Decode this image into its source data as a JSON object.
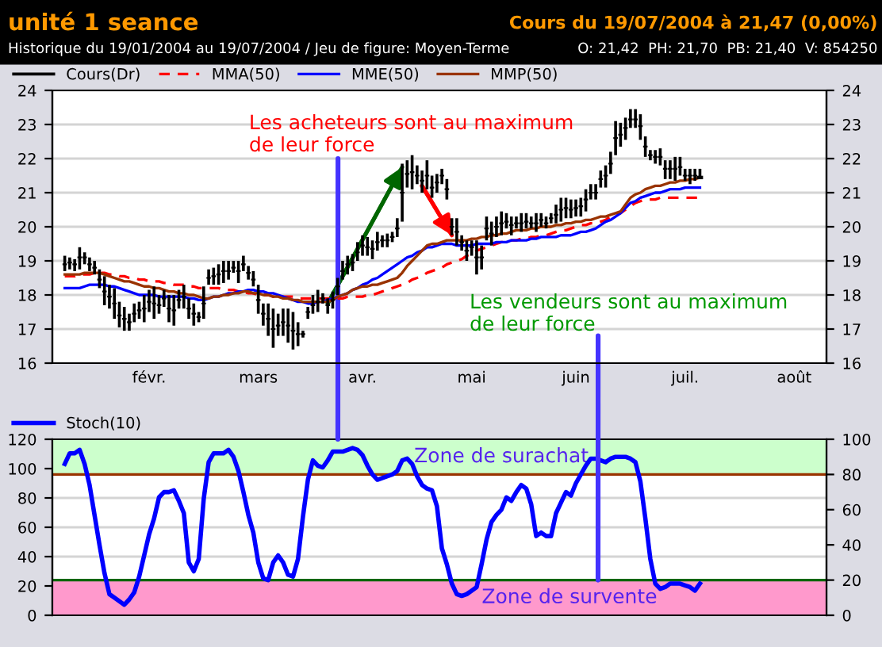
{
  "chart_data": [
    {
      "type": "candlestick",
      "title": "unité 1 seance",
      "subtitle": "Historique du 19/01/2004 au 19/07/2004 / Jeu de figure: Moyen-Terme",
      "categories": [
        null,
        null,
        null,
        null,
        null,
        null,
        null,
        null,
        null,
        null,
        null,
        null,
        null,
        null,
        null,
        null,
        null,
        null,
        null,
        "févr.",
        null,
        null,
        null,
        null,
        null,
        null,
        null,
        null,
        null,
        null,
        null,
        null,
        null,
        null,
        null,
        null,
        null,
        null,
        null,
        null,
        null,
        "mars",
        null,
        null,
        null,
        null,
        null,
        null,
        null,
        null,
        null,
        null,
        null,
        null,
        null,
        null,
        null,
        null,
        null,
        null,
        null,
        null,
        "avr.",
        null,
        null,
        null,
        null,
        null,
        null,
        null,
        null,
        null,
        null,
        null,
        null,
        null,
        null,
        null,
        null,
        null,
        null,
        null,
        null,
        null,
        "mai",
        null,
        null,
        null,
        null,
        null,
        null,
        null,
        null,
        null,
        null,
        null,
        null,
        null,
        null,
        null,
        null,
        null,
        null,
        null,
        null,
        "juin",
        null,
        null,
        null,
        null,
        null,
        null,
        null,
        null,
        null,
        null,
        null,
        null,
        null,
        null,
        null,
        null,
        null,
        null,
        null,
        null,
        null,
        "juil.",
        null,
        null,
        null,
        null,
        null,
        null,
        null,
        null,
        null,
        null,
        null,
        null,
        null,
        null,
        null,
        null,
        null,
        null,
        null,
        null,
        null,
        "août",
        null,
        null,
        null,
        null,
        null,
        null
      ],
      "series": [
        {
          "name": "Cours(Dr)",
          "color": "#000000",
          "ohlc": [
            null,
            null,
            [
              18.9,
              19.15,
              18.7,
              18.9
            ],
            [
              18.95,
              19.1,
              18.75,
              18.95
            ],
            [
              18.9,
              19.05,
              18.7,
              18.9
            ],
            [
              19.1,
              19.4,
              18.75,
              19.1
            ],
            [
              19.1,
              19.25,
              18.9,
              19.1
            ],
            [
              18.9,
              19.1,
              18.7,
              18.9
            ],
            [
              18.8,
              19.0,
              18.6,
              18.8
            ],
            [
              18.45,
              18.75,
              18.2,
              18.45
            ],
            [
              18.1,
              18.55,
              17.7,
              18.1
            ],
            [
              17.95,
              18.3,
              17.6,
              17.95
            ],
            [
              17.75,
              18.2,
              17.3,
              17.75
            ],
            [
              17.4,
              17.8,
              17.05,
              17.4
            ],
            [
              17.3,
              17.65,
              16.95,
              17.3
            ],
            [
              17.2,
              17.45,
              16.95,
              17.2
            ],
            [
              17.45,
              17.75,
              17.2,
              17.45
            ],
            [
              17.55,
              17.8,
              17.3,
              17.55
            ],
            [
              17.6,
              18.0,
              17.2,
              17.6
            ],
            [
              17.8,
              18.15,
              17.5,
              17.8
            ],
            [
              17.75,
              18.25,
              17.3,
              17.75
            ],
            [
              17.7,
              18.0,
              17.45,
              17.7
            ],
            [
              17.9,
              18.15,
              17.65,
              17.9
            ],
            [
              17.6,
              18.0,
              17.2,
              17.6
            ],
            [
              17.55,
              18.0,
              17.1,
              17.55
            ],
            [
              17.85,
              18.15,
              17.6,
              17.85
            ],
            [
              17.95,
              18.3,
              17.6,
              17.95
            ],
            [
              17.6,
              17.9,
              17.3,
              17.6
            ],
            [
              17.45,
              17.75,
              17.1,
              17.45
            ],
            [
              17.35,
              17.5,
              17.2,
              17.35
            ],
            [
              17.75,
              18.25,
              17.3,
              17.75
            ],
            [
              18.5,
              18.75,
              18.3,
              18.5
            ],
            [
              18.55,
              18.8,
              18.3,
              18.55
            ],
            [
              18.6,
              18.9,
              18.3,
              18.6
            ],
            [
              18.7,
              19.0,
              18.35,
              18.7
            ],
            [
              18.7,
              19.0,
              18.45,
              18.7
            ],
            [
              18.8,
              19.0,
              18.65,
              18.8
            ],
            [
              18.7,
              19.0,
              18.35,
              18.7
            ],
            [
              18.9,
              19.15,
              18.7,
              18.9
            ],
            [
              18.65,
              18.85,
              18.45,
              18.65
            ],
            [
              18.45,
              18.7,
              18.25,
              18.45
            ],
            [
              17.85,
              18.3,
              17.45,
              17.85
            ],
            [
              17.45,
              17.75,
              17.1,
              17.45
            ],
            [
              17.3,
              17.75,
              16.8,
              17.3
            ],
            [
              17.0,
              17.6,
              16.45,
              17.0
            ],
            [
              17.1,
              17.45,
              16.8,
              17.1
            ],
            [
              17.2,
              17.6,
              16.8,
              17.2
            ],
            [
              17.1,
              17.6,
              16.6,
              17.1
            ],
            [
              16.95,
              17.5,
              16.4,
              16.95
            ],
            [
              16.85,
              17.2,
              16.5,
              16.85
            ],
            [
              16.85,
              16.95,
              16.75,
              16.85
            ],
            [
              17.5,
              17.65,
              17.3,
              17.5
            ],
            [
              17.7,
              18.0,
              17.45,
              17.7
            ],
            [
              17.8,
              18.15,
              17.5,
              17.8
            ],
            [
              17.9,
              18.05,
              17.75,
              17.9
            ],
            [
              17.7,
              17.9,
              17.45,
              17.7
            ],
            [
              17.85,
              18.1,
              17.6,
              17.85
            ],
            [
              18.25,
              18.5,
              18.0,
              18.25
            ],
            [
              18.7,
              19.0,
              18.45,
              18.7
            ],
            [
              18.9,
              19.15,
              18.6,
              18.9
            ],
            [
              18.95,
              19.2,
              18.7,
              18.95
            ],
            [
              19.25,
              19.55,
              19.0,
              19.25
            ],
            [
              19.45,
              19.75,
              19.15,
              19.45
            ],
            [
              19.4,
              19.7,
              19.15,
              19.4
            ],
            [
              19.35,
              19.6,
              19.05,
              19.35
            ],
            [
              19.55,
              19.85,
              19.3,
              19.55
            ],
            [
              19.6,
              19.75,
              19.4,
              19.6
            ],
            [
              19.6,
              19.8,
              19.4,
              19.6
            ],
            [
              19.7,
              19.85,
              19.55,
              19.7
            ],
            [
              19.95,
              20.25,
              19.7,
              19.95
            ],
            [
              21.0,
              21.85,
              20.15,
              21.0
            ],
            [
              21.55,
              21.95,
              21.15,
              21.55
            ],
            [
              21.6,
              22.1,
              21.1,
              21.6
            ],
            [
              21.5,
              21.8,
              21.25,
              21.5
            ],
            [
              21.35,
              21.65,
              21.0,
              21.35
            ],
            [
              21.5,
              21.95,
              21.1,
              21.5
            ],
            [
              21.15,
              21.5,
              20.85,
              21.15
            ],
            [
              21.3,
              21.55,
              21.0,
              21.3
            ],
            [
              21.5,
              21.7,
              21.25,
              21.5
            ],
            [
              21.1,
              21.4,
              20.8,
              21.1
            ],
            [
              20.0,
              20.25,
              19.75,
              20.0
            ],
            [
              19.85,
              20.25,
              19.45,
              19.85
            ],
            [
              19.55,
              19.75,
              19.3,
              19.55
            ],
            [
              19.3,
              19.6,
              19.0,
              19.3
            ],
            [
              19.4,
              19.6,
              19.15,
              19.4
            ],
            [
              19.1,
              19.6,
              18.6,
              19.1
            ],
            [
              19.1,
              19.45,
              18.75,
              19.1
            ],
            [
              19.95,
              20.3,
              19.6,
              19.95
            ],
            [
              19.8,
              20.15,
              19.45,
              19.8
            ],
            [
              20.0,
              20.3,
              19.7,
              20.0
            ],
            [
              20.1,
              20.45,
              19.75,
              20.1
            ],
            [
              20.15,
              20.4,
              19.95,
              20.15
            ],
            [
              20.05,
              20.3,
              19.75,
              20.05
            ],
            [
              20.1,
              20.3,
              19.95,
              20.1
            ],
            [
              20.1,
              20.4,
              19.85,
              20.1
            ],
            [
              20.15,
              20.4,
              19.95,
              20.15
            ],
            [
              20.1,
              20.3,
              19.95,
              20.1
            ],
            [
              20.1,
              20.4,
              19.85,
              20.1
            ],
            [
              20.2,
              20.4,
              20.0,
              20.2
            ],
            [
              20.1,
              20.3,
              19.95,
              20.1
            ],
            [
              20.25,
              20.4,
              20.1,
              20.25
            ],
            [
              20.35,
              20.65,
              20.1,
              20.35
            ],
            [
              20.5,
              20.85,
              20.15,
              20.5
            ],
            [
              20.55,
              20.85,
              20.25,
              20.55
            ],
            [
              20.5,
              20.8,
              20.25,
              20.5
            ],
            [
              20.55,
              20.8,
              20.3,
              20.55
            ],
            [
              20.6,
              20.85,
              20.3,
              20.6
            ],
            [
              20.8,
              21.1,
              20.45,
              20.8
            ],
            [
              21.0,
              21.25,
              20.8,
              21.0
            ],
            [
              21.0,
              21.25,
              20.8,
              21.0
            ],
            [
              21.4,
              21.65,
              21.15,
              21.4
            ],
            [
              21.5,
              21.8,
              21.15,
              21.5
            ],
            [
              21.85,
              22.2,
              21.55,
              21.85
            ],
            [
              22.6,
              23.1,
              22.1,
              22.6
            ],
            [
              22.7,
              23.05,
              22.35,
              22.7
            ],
            [
              22.9,
              23.2,
              22.55,
              22.9
            ],
            [
              23.15,
              23.45,
              22.9,
              23.15
            ],
            [
              23.15,
              23.45,
              22.9,
              23.15
            ],
            [
              22.95,
              23.3,
              22.55,
              22.95
            ],
            [
              22.35,
              22.65,
              22.05,
              22.35
            ],
            [
              22.1,
              22.25,
              21.95,
              22.1
            ],
            [
              22.05,
              22.25,
              21.85,
              22.05
            ],
            [
              22.05,
              22.3,
              21.8,
              22.05
            ],
            [
              21.7,
              21.95,
              21.4,
              21.7
            ],
            [
              21.7,
              21.95,
              21.4,
              21.7
            ],
            [
              21.7,
              22.05,
              21.35,
              21.7
            ],
            [
              21.75,
              22.05,
              21.5,
              21.75
            ],
            [
              21.5,
              21.7,
              21.35,
              21.5
            ],
            [
              21.5,
              21.7,
              21.25,
              21.5
            ],
            [
              21.5,
              21.7,
              21.35,
              21.5
            ],
            [
              21.42,
              21.7,
              21.4,
              21.47
            ],
            null,
            null,
            null,
            null,
            null,
            null,
            null,
            null,
            null,
            null,
            null,
            null,
            null,
            null,
            null,
            null,
            null,
            null,
            null,
            null,
            null,
            null,
            null,
            null,
            null
          ]
        },
        {
          "type": "line",
          "name": "MMA(50)",
          "color": "#ff0000",
          "line_style": "dashed",
          "values": [
            null,
            null,
            18.55,
            18.55,
            18.55,
            18.6,
            18.6,
            18.6,
            18.65,
            18.65,
            18.65,
            18.6,
            18.6,
            18.55,
            18.55,
            18.5,
            18.5,
            18.45,
            18.45,
            18.4,
            18.4,
            18.4,
            18.35,
            18.35,
            18.3,
            18.3,
            18.3,
            18.25,
            18.25,
            18.2,
            18.2,
            18.2,
            18.2,
            18.2,
            18.15,
            18.15,
            18.15,
            18.1,
            18.1,
            18.05,
            18.05,
            18.0,
            18.0,
            18.0,
            17.95,
            17.95,
            17.95,
            17.95,
            17.95,
            17.9,
            17.9,
            17.9,
            17.9,
            17.9,
            17.9,
            17.9,
            17.9,
            17.9,
            17.9,
            17.95,
            17.95,
            17.95,
            17.95,
            18.0,
            18.0,
            18.05,
            18.1,
            18.15,
            18.2,
            18.25,
            18.3,
            18.35,
            18.45,
            18.5,
            18.55,
            18.65,
            18.7,
            18.75,
            18.8,
            18.9,
            18.95,
            19.0,
            19.05,
            19.15,
            19.2,
            19.3,
            19.35,
            19.4,
            19.45,
            19.5,
            19.55,
            19.55,
            19.6,
            19.6,
            19.65,
            19.65,
            19.7,
            19.7,
            19.75,
            19.75,
            19.8,
            19.85,
            19.9,
            19.9,
            19.95,
            20.0,
            20.05,
            20.05,
            20.1,
            20.1,
            20.15,
            20.2,
            20.3,
            20.35,
            20.4,
            20.5,
            20.6,
            20.7,
            20.75,
            20.8,
            20.8,
            20.8,
            20.85,
            20.85,
            20.85,
            20.85,
            20.85,
            20.85,
            20.85,
            20.85,
            20.85,
            null,
            null,
            null,
            null,
            null,
            null,
            null,
            null,
            null,
            null,
            null,
            null,
            null,
            null,
            null,
            null,
            null,
            null,
            null,
            null,
            null,
            null,
            null,
            null,
            null
          ]
        },
        {
          "type": "line",
          "name": "MME(50)",
          "color": "#0000ff",
          "line_style": "solid",
          "values": [
            null,
            null,
            18.2,
            18.2,
            18.2,
            18.2,
            18.25,
            18.3,
            18.3,
            18.3,
            18.3,
            18.25,
            18.25,
            18.2,
            18.15,
            18.1,
            18.05,
            18.0,
            18.0,
            18.0,
            18.0,
            17.95,
            17.95,
            17.95,
            17.95,
            17.95,
            17.95,
            17.9,
            17.9,
            17.85,
            17.85,
            17.9,
            17.95,
            17.95,
            18.0,
            18.05,
            18.05,
            18.1,
            18.1,
            18.15,
            18.15,
            18.1,
            18.1,
            18.05,
            18.05,
            18.0,
            17.95,
            17.9,
            17.85,
            17.8,
            17.8,
            17.75,
            17.75,
            17.8,
            17.8,
            17.85,
            17.9,
            17.95,
            18.0,
            18.05,
            18.15,
            18.2,
            18.3,
            18.35,
            18.45,
            18.5,
            18.6,
            18.7,
            18.8,
            18.9,
            19.0,
            19.1,
            19.15,
            19.25,
            19.3,
            19.4,
            19.4,
            19.45,
            19.5,
            19.5,
            19.5,
            19.45,
            19.45,
            19.45,
            19.45,
            19.5,
            19.5,
            19.5,
            19.5,
            19.55,
            19.55,
            19.55,
            19.6,
            19.6,
            19.6,
            19.6,
            19.65,
            19.65,
            19.7,
            19.7,
            19.7,
            19.7,
            19.75,
            19.75,
            19.75,
            19.8,
            19.85,
            19.85,
            19.9,
            19.95,
            20.05,
            20.15,
            20.2,
            20.3,
            20.4,
            20.55,
            20.7,
            20.75,
            20.85,
            20.9,
            20.95,
            21.0,
            21.0,
            21.05,
            21.1,
            21.1,
            21.1,
            21.15,
            21.15,
            21.15,
            21.15,
            null,
            null,
            null,
            null,
            null,
            null,
            null,
            null,
            null,
            null,
            null,
            null,
            null,
            null,
            null,
            null,
            null,
            null,
            null,
            null,
            null,
            null,
            null,
            null,
            null
          ]
        },
        {
          "type": "line",
          "name": "MMP(50)",
          "color": "#993300",
          "line_style": "solid",
          "values": [
            null,
            null,
            18.6,
            18.6,
            18.6,
            18.6,
            18.65,
            18.65,
            18.65,
            18.65,
            18.6,
            18.55,
            18.5,
            18.45,
            18.4,
            18.4,
            18.35,
            18.3,
            18.25,
            18.25,
            18.2,
            18.2,
            18.15,
            18.1,
            18.1,
            18.05,
            18.05,
            18.0,
            18.0,
            17.95,
            17.9,
            17.9,
            17.95,
            17.95,
            18.0,
            18.0,
            18.05,
            18.05,
            18.1,
            18.1,
            18.05,
            18.05,
            18.0,
            18.0,
            17.95,
            17.95,
            17.9,
            17.9,
            17.85,
            17.85,
            17.8,
            17.8,
            17.8,
            17.8,
            17.8,
            17.8,
            17.85,
            17.95,
            18.0,
            18.05,
            18.15,
            18.2,
            18.25,
            18.25,
            18.3,
            18.3,
            18.35,
            18.4,
            18.45,
            18.5,
            18.65,
            18.85,
            19.0,
            19.15,
            19.3,
            19.45,
            19.5,
            19.5,
            19.55,
            19.6,
            19.6,
            19.6,
            19.6,
            19.6,
            19.65,
            19.65,
            19.7,
            19.7,
            19.75,
            19.75,
            19.8,
            19.8,
            19.85,
            19.9,
            19.9,
            19.9,
            19.95,
            19.95,
            20.0,
            20.0,
            20.0,
            20.05,
            20.05,
            20.1,
            20.1,
            20.15,
            20.15,
            20.2,
            20.2,
            20.25,
            20.3,
            20.3,
            20.35,
            20.4,
            20.45,
            20.65,
            20.85,
            20.95,
            21.0,
            21.1,
            21.15,
            21.2,
            21.2,
            21.25,
            21.3,
            21.3,
            21.35,
            21.35,
            21.4,
            21.4,
            21.45,
            null,
            null,
            null,
            null,
            null,
            null,
            null,
            null,
            null,
            null,
            null,
            null,
            null,
            null,
            null,
            null,
            null,
            null,
            null,
            null,
            null,
            null,
            null,
            null,
            null
          ]
        },
        {
          "type": "line",
          "color": "#006600",
          "values": [
            null,
            null,
            null,
            null,
            null,
            null,
            null,
            null,
            null,
            null,
            null,
            null,
            null,
            null,
            null,
            null,
            null,
            null,
            null,
            null,
            null,
            null,
            null,
            null,
            null,
            null,
            null,
            null,
            null,
            null,
            null,
            null,
            null,
            null,
            null,
            null,
            null,
            null,
            null,
            null,
            null,
            null,
            null,
            null,
            null,
            null,
            null,
            null,
            null,
            null,
            null,
            null,
            null,
            null,
            null,
            17.75,
            null,
            null,
            null,
            null,
            null,
            null,
            null,
            null,
            null,
            null,
            null,
            null,
            null,
            null,
            21.75,
            null,
            null,
            null,
            null,
            null,
            null,
            null,
            null,
            null,
            null,
            null,
            null,
            null,
            null,
            null,
            null,
            null,
            null,
            null,
            null,
            null,
            null,
            null,
            null,
            null,
            null,
            null,
            null,
            null,
            null,
            null,
            null,
            null,
            null,
            null,
            null,
            null,
            null,
            null,
            null,
            null,
            null,
            null,
            null,
            null,
            null,
            null,
            null,
            null,
            null,
            null,
            null,
            null,
            null,
            null,
            null,
            null,
            null,
            null,
            null,
            null,
            null,
            null,
            null,
            null,
            null,
            null,
            null,
            null,
            null,
            null,
            null,
            null,
            null,
            null,
            null,
            null,
            null,
            null,
            null,
            null,
            null,
            null,
            null,
            null
          ]
        },
        {
          "type": "line",
          "color": "#ff0000",
          "values": [
            null,
            null,
            null,
            null,
            null,
            null,
            null,
            null,
            null,
            null,
            null,
            null,
            null,
            null,
            null,
            null,
            null,
            null,
            null,
            null,
            null,
            null,
            null,
            null,
            null,
            null,
            null,
            null,
            null,
            null,
            null,
            null,
            null,
            null,
            null,
            null,
            null,
            null,
            null,
            null,
            null,
            null,
            null,
            null,
            null,
            null,
            null,
            null,
            null,
            null,
            null,
            null,
            null,
            null,
            null,
            null,
            null,
            null,
            null,
            null,
            null,
            null,
            null,
            null,
            null,
            null,
            null,
            null,
            null,
            null,
            null,
            null,
            null,
            null,
            21.2,
            null,
            null,
            null,
            null,
            null,
            19.75,
            null,
            null,
            null,
            null,
            null,
            null,
            null,
            null,
            null,
            null,
            null,
            null,
            null,
            null,
            null,
            null,
            null,
            null,
            null,
            null,
            null,
            null,
            null,
            null,
            null,
            null,
            null,
            null,
            null,
            null,
            null,
            null,
            null,
            null,
            null,
            null,
            null,
            null,
            null,
            null,
            null,
            null,
            null,
            null,
            null,
            null,
            null,
            null,
            null,
            null,
            null,
            null,
            null,
            null,
            null,
            null,
            null,
            null,
            null,
            null,
            null,
            null,
            null,
            null,
            null,
            null,
            null,
            null,
            null,
            null,
            null,
            null,
            null,
            null,
            null
          ]
        }
      ],
      "ylim": [
        16,
        24
      ],
      "yticks": [
        16,
        17,
        18,
        19,
        20,
        21,
        22,
        23,
        24
      ],
      "y2lim": [
        16,
        24
      ],
      "y2ticks": [
        16,
        17,
        18,
        19,
        20,
        21,
        22,
        23,
        24
      ],
      "grid": "y",
      "legend": "top left",
      "annotations": [
        "Cours du 19/07/2004 à 21,47 (0,00%)",
        "O: 21,42  PH: 21,70  PB: 21,40  V: 854250",
        "Les acheteurs sont au maximum\nde leur force",
        "Les vendeurs sont au maximum\nde leur force"
      ]
    },
    {
      "type": "line",
      "categories": [
        null,
        null,
        null,
        null,
        null,
        null,
        null,
        null,
        null,
        null,
        null,
        null,
        null,
        null,
        null,
        null,
        null,
        null,
        null,
        null,
        null,
        null,
        null,
        null,
        null,
        null,
        null,
        null,
        null,
        null,
        null,
        null,
        null,
        null,
        null,
        null,
        null,
        null,
        null,
        null,
        null,
        null,
        null,
        null,
        null,
        null,
        null,
        null,
        null,
        null,
        null,
        null,
        null,
        null,
        null,
        null,
        null,
        null,
        null,
        null,
        null,
        null,
        null,
        null,
        null,
        null,
        null,
        null,
        null,
        null,
        null,
        null,
        null,
        null,
        null,
        null,
        null,
        null,
        null,
        null,
        null,
        null,
        null,
        null,
        null,
        null,
        null,
        null,
        null,
        null,
        null,
        null,
        null,
        null,
        null,
        null,
        null,
        null,
        null,
        null,
        null,
        null,
        null,
        null,
        null,
        null,
        null,
        null,
        null,
        null,
        null,
        null,
        null,
        null,
        null,
        null,
        null,
        null,
        null,
        null,
        null,
        null,
        null,
        null,
        null,
        null,
        null,
        null,
        null,
        null,
        null,
        null,
        null,
        null,
        null,
        null,
        null,
        null,
        null,
        null,
        null,
        null,
        null,
        null,
        null,
        null,
        null,
        null,
        null,
        null,
        null,
        null,
        null,
        null,
        null,
        null
      ],
      "series": [
        {
          "name": "Stoch(10)",
          "color": "#0000ff",
          "axis": "y2",
          "values": [
            null,
            null,
            86,
            92,
            92,
            94,
            86,
            74,
            57,
            40,
            24,
            12,
            10,
            8,
            6,
            9,
            13,
            22,
            34,
            46,
            55,
            67,
            70,
            70,
            71,
            65,
            58,
            30,
            25,
            32,
            66,
            87,
            92,
            92,
            92,
            94,
            90,
            82,
            70,
            57,
            47,
            30,
            21,
            20,
            30,
            34,
            30,
            23,
            22,
            32,
            56,
            77,
            88,
            85,
            84,
            88,
            93,
            93,
            93,
            94,
            95,
            94,
            91,
            85,
            80,
            77,
            78,
            79,
            80,
            82,
            88,
            89,
            86,
            79,
            74,
            72,
            71,
            62,
            38,
            29,
            18,
            12,
            11,
            12,
            14,
            16,
            29,
            43,
            53,
            57,
            60,
            67,
            65,
            70,
            74,
            72,
            63,
            45,
            47,
            45,
            45,
            58,
            64,
            70,
            68,
            75,
            80,
            85,
            89,
            89,
            88,
            87,
            89,
            90,
            90,
            90,
            89,
            87,
            76,
            55,
            32,
            18,
            15,
            16,
            18,
            18,
            18,
            17,
            16,
            14,
            18,
            null,
            null,
            null,
            null,
            null,
            null,
            null,
            null,
            null,
            null,
            null,
            null,
            null,
            null,
            null,
            null,
            null,
            null,
            null,
            null,
            null,
            null,
            null,
            null,
            null
          ]
        }
      ],
      "ylim": [
        0,
        120
      ],
      "yticks": [
        0,
        20,
        40,
        60,
        80,
        100,
        120
      ],
      "y2lim": [
        0,
        100
      ],
      "y2ticks": [
        0,
        20,
        40,
        60,
        80,
        100
      ],
      "tick_labels": "y",
      "grid": "y",
      "legend": "top left",
      "ref_lines": [
        {
          "axis": "y2",
          "value": 80,
          "color": "#993300"
        },
        {
          "axis": "y2",
          "value": 20,
          "color": "#006600"
        }
      ],
      "bands": [
        {
          "axis": "y2",
          "from": 80,
          "to": 100,
          "label": "Zone de surachat",
          "color": "#ccffcc"
        },
        {
          "axis": "y2",
          "from": 0,
          "to": 20,
          "label": "Zone de survente",
          "color": "#ff99cc"
        }
      ]
    }
  ]
}
